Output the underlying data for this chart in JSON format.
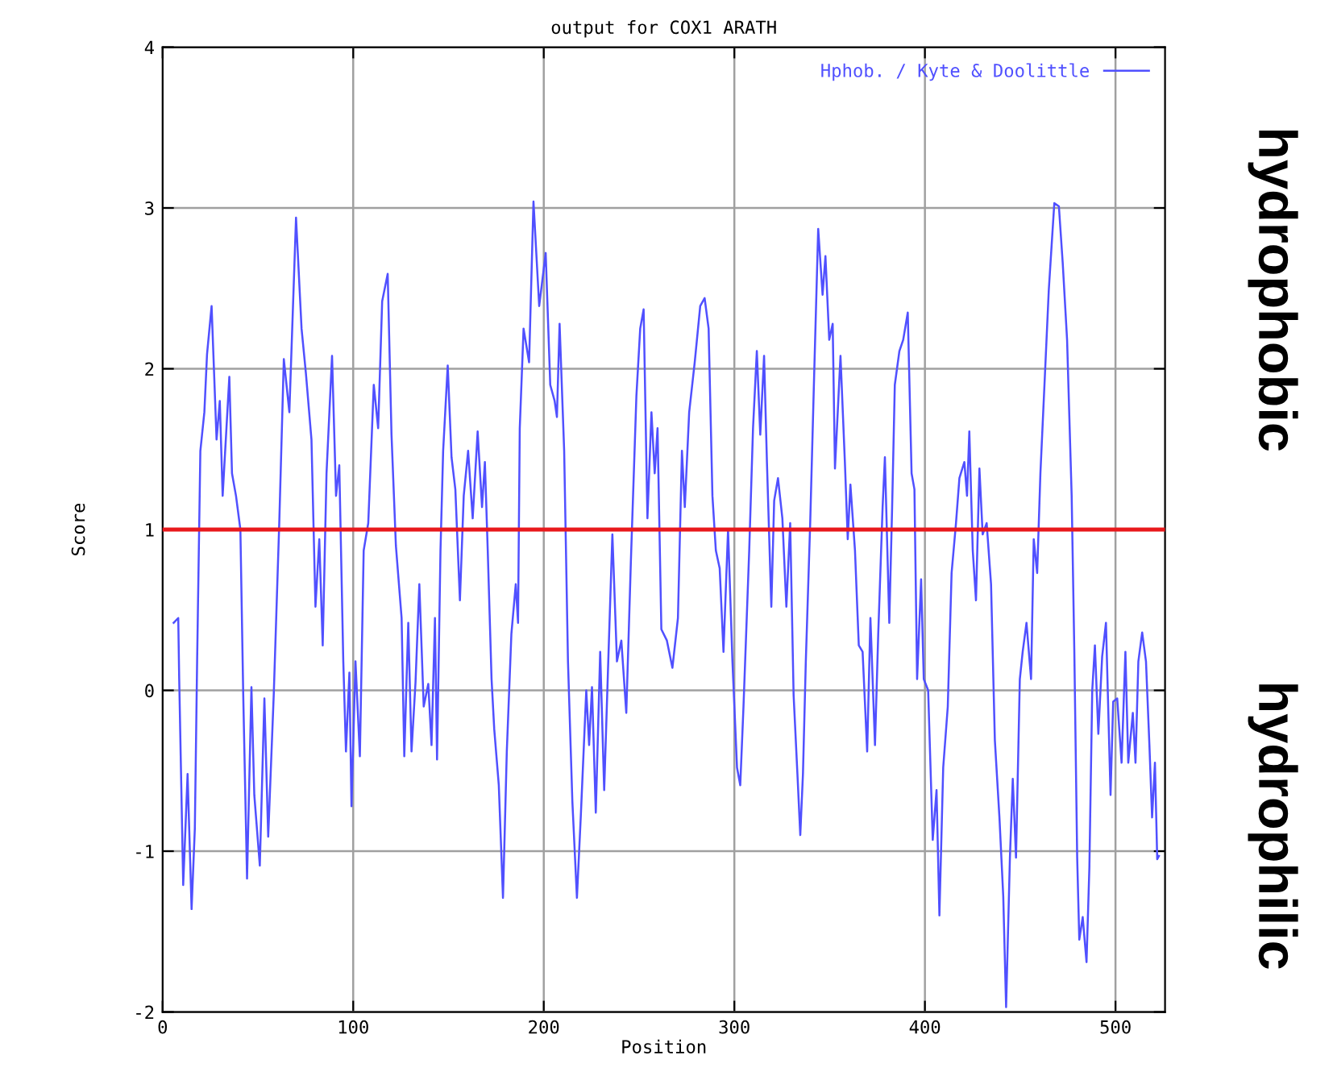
{
  "chart_data": {
    "type": "line",
    "title": "output for COX1 ARATH",
    "xlabel": "Position",
    "ylabel": "Score",
    "annotations": [
      "hydrophobic",
      "hydrophilic"
    ],
    "xlim": [
      0,
      526
    ],
    "ylim": [
      -2,
      4
    ],
    "xticks": [
      0,
      100,
      200,
      300,
      400,
      500
    ],
    "yticks": [
      -2,
      -1,
      0,
      1,
      2,
      3,
      4
    ],
    "grid": true,
    "legend": "top right",
    "line_style": "solid",
    "ref_lines": [
      {
        "axis": "y",
        "value": 1,
        "color": "#e8191c"
      }
    ],
    "series": [
      {
        "name": "Hphob. / Kyte & Doolittle",
        "color": "#5050ff",
        "x": [
          5.8,
          8.2,
          8.7,
          10.8,
          13.1,
          15.2,
          16.9,
          18.1,
          19.8,
          21.9,
          23.3,
          25.7,
          28.3,
          30,
          31.5,
          35,
          36.4,
          38.5,
          40.8,
          42.3,
          44.3,
          46.6,
          48.1,
          51,
          53.4,
          55.4,
          58.3,
          61.2,
          63.6,
          66.5,
          70,
          72.9,
          75.2,
          78.1,
          80.2,
          82.2,
          84,
          86,
          88.9,
          91,
          92.7,
          94.8,
          96.2,
          98,
          99.1,
          101.2,
          103.5,
          105.5,
          107.9,
          110.8,
          113.1,
          115.2,
          118.1,
          120.1,
          122.4,
          125.4,
          126.8,
          128.9,
          130.6,
          132.7,
          134.7,
          137,
          139.4,
          141.1,
          142.9,
          144,
          145.8,
          147.2,
          149.6,
          151.6,
          153.6,
          156,
          158,
          160.3,
          162.7,
          165.3,
          167.6,
          169.1,
          170.6,
          172.6,
          174,
          176.4,
          178.6,
          180.6,
          183,
          185.3,
          186.5,
          187.4,
          189.4,
          192.3,
          194.6,
          197.6,
          201,
          203.4,
          205.7,
          206.9,
          208.3,
          210.7,
          212.7,
          215,
          217.4,
          219.4,
          222.3,
          223.8,
          225.3,
          227.3,
          229.6,
          231.7,
          234,
          236,
          238.4,
          240.7,
          243.3,
          245.7,
          248.6,
          250.6,
          252.4,
          254.4,
          256.5,
          258.2,
          259.7,
          261.7,
          264.6,
          267.5,
          270.4,
          272.5,
          274,
          276.3,
          279.2,
          282.1,
          284.4,
          286.5,
          288.5,
          290.3,
          292.3,
          294.3,
          296.7,
          299,
          301.4,
          303.1,
          304.8,
          307.8,
          309.8,
          311.8,
          313.6,
          315.6,
          317.1,
          319.4,
          320.9,
          322.9,
          325.2,
          327.3,
          329.3,
          331.1,
          333.1,
          334.6,
          336,
          337.5,
          339.8,
          341.9,
          344,
          346.3,
          347.8,
          349.8,
          351.6,
          352.8,
          355.7,
          358,
          359.5,
          360.9,
          363.3,
          365.3,
          367.3,
          369.7,
          371.4,
          373.8,
          375.5,
          377.8,
          379,
          381.3,
          382.8,
          384.2,
          386.6,
          388.6,
          391,
          393,
          394.5,
          395.9,
          398,
          399.4,
          401.7,
          404.1,
          406.1,
          407.6,
          409.6,
          412,
          414,
          416.3,
          418.1,
          420.7,
          422.1,
          423.3,
          425.1,
          426.8,
          428.6,
          430.3,
          432.4,
          434.7,
          436.7,
          439.1,
          441.1,
          442.6,
          444.6,
          446.1,
          447.8,
          449.8,
          451.3,
          453.3,
          455.7,
          457.1,
          458.9,
          460.6,
          463,
          465,
          466.5,
          467.9,
          470.3,
          472.3,
          474.6,
          477,
          478.4,
          479.9,
          481,
          482.8,
          484.8,
          486.3,
          487.8,
          489.2,
          491,
          493,
          495,
          497.4,
          498.8,
          500.9,
          503.2,
          505.2,
          506.7,
          509.1,
          510.5,
          512,
          514,
          516,
          517.8,
          519.2,
          520.7,
          521.9,
          522.8
        ],
        "values": [
          0.42,
          0.45,
          0.07,
          -1.21,
          -0.52,
          -1.36,
          -0.86,
          0.18,
          1.49,
          1.73,
          2.09,
          2.39,
          1.56,
          1.8,
          1.21,
          1.95,
          1.35,
          1.21,
          1.0,
          -0.03,
          -1.17,
          0.02,
          -0.65,
          -1.09,
          -0.05,
          -0.91,
          -0.03,
          1.04,
          2.06,
          1.73,
          2.94,
          2.25,
          1.97,
          1.56,
          0.52,
          0.94,
          0.28,
          1.35,
          2.08,
          1.21,
          1.4,
          0.18,
          -0.38,
          0.11,
          -0.72,
          0.18,
          -0.41,
          0.87,
          1.04,
          1.9,
          1.63,
          2.42,
          2.59,
          1.59,
          0.9,
          0.45,
          -0.41,
          0.42,
          -0.38,
          0.05,
          0.66,
          -0.1,
          0.04,
          -0.34,
          0.45,
          -0.43,
          0.87,
          1.49,
          2.02,
          1.45,
          1.25,
          0.56,
          1.21,
          1.49,
          1.07,
          1.61,
          1.14,
          1.42,
          0.87,
          0.07,
          -0.24,
          -0.59,
          -1.29,
          -0.38,
          0.35,
          0.66,
          0.42,
          1.63,
          2.25,
          2.04,
          3.04,
          2.39,
          2.72,
          1.9,
          1.8,
          1.7,
          2.28,
          1.49,
          0.18,
          -0.69,
          -1.29,
          -0.79,
          0.0,
          -0.34,
          0.02,
          -0.76,
          0.24,
          -0.62,
          0.24,
          0.97,
          0.18,
          0.31,
          -0.14,
          0.8,
          1.83,
          2.25,
          2.37,
          1.07,
          1.73,
          1.35,
          1.63,
          0.38,
          0.31,
          0.14,
          0.45,
          1.49,
          1.14,
          1.73,
          2.04,
          2.39,
          2.44,
          2.25,
          1.21,
          0.87,
          0.76,
          0.24,
          1.0,
          0.18,
          -0.48,
          -0.59,
          -0.1,
          0.87,
          1.63,
          2.11,
          1.59,
          2.08,
          1.42,
          0.52,
          1.18,
          1.32,
          1.07,
          0.52,
          1.04,
          -0.03,
          -0.52,
          -0.9,
          -0.52,
          0.18,
          1.04,
          1.97,
          2.87,
          2.46,
          2.7,
          2.18,
          2.28,
          1.38,
          2.08,
          1.42,
          0.94,
          1.28,
          0.87,
          0.28,
          0.24,
          -0.38,
          0.45,
          -0.34,
          0.35,
          1.14,
          1.45,
          0.42,
          1.14,
          1.9,
          2.11,
          2.18,
          2.35,
          1.35,
          1.25,
          0.07,
          0.69,
          0.07,
          0.0,
          -0.93,
          -0.62,
          -1.4,
          -0.48,
          -0.1,
          0.73,
          1.04,
          1.32,
          1.42,
          1.21,
          1.61,
          0.87,
          0.56,
          1.38,
          0.97,
          1.04,
          0.66,
          -0.31,
          -0.79,
          -1.28,
          -1.97,
          -1.04,
          -0.55,
          -1.04,
          0.07,
          0.24,
          0.42,
          0.07,
          0.94,
          0.73,
          1.35,
          1.97,
          2.49,
          2.77,
          3.03,
          3.01,
          2.66,
          2.18,
          1.21,
          0.24,
          -1.04,
          -1.55,
          -1.41,
          -1.69,
          -1.1,
          0.0,
          0.28,
          -0.27,
          0.21,
          0.42,
          -0.65,
          -0.07,
          -0.05,
          -0.45,
          0.24,
          -0.45,
          -0.14,
          -0.45,
          0.18,
          0.36,
          0.18,
          -0.34,
          -0.79,
          -0.45,
          -1.05,
          -1.03
        ]
      }
    ]
  }
}
